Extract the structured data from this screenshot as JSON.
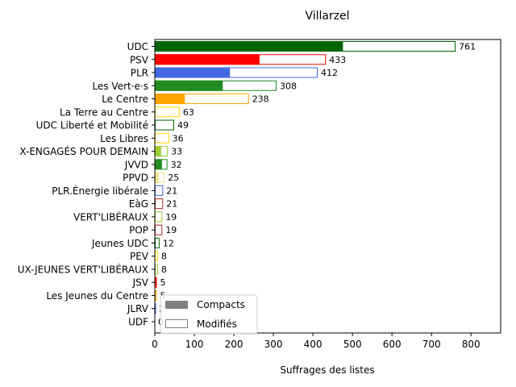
{
  "chart_data": {
    "type": "bar",
    "orientation": "horizontal",
    "title": "Villarzel",
    "xlabel": "Suffrages des listes",
    "ylabel": "",
    "xlim": [
      0,
      875
    ],
    "xticks": [
      0,
      100,
      200,
      300,
      400,
      500,
      600,
      700,
      800
    ],
    "grid": false,
    "legend_position": "lower-left",
    "legend": [
      {
        "name": "Compacts",
        "style": "filled",
        "color": "#808080"
      },
      {
        "name": "Modifiés",
        "style": "outline",
        "color": "#808080"
      }
    ],
    "categories": [
      "UDC",
      "PSV",
      "PLR",
      "Les Vert·e·s",
      "Le Centre",
      "La Terre au Centre",
      "UDC Liberté et Mobilité",
      "Les Libres",
      "X-ENGAGÉS POUR DEMAIN",
      "JVVD",
      "PPVD",
      "PLR.Énergie libérale",
      "EàG",
      "VERT'LIBÉRAUX",
      "POP",
      "Jeunes UDC",
      "PEV",
      "UX-JEUNES VERT'LIBÉRAUX",
      "JSV",
      "Les Jeunes du Centre",
      "JLRV",
      "UDF"
    ],
    "totals": [
      761,
      433,
      412,
      308,
      238,
      63,
      49,
      36,
      33,
      32,
      25,
      21,
      21,
      19,
      19,
      12,
      8,
      8,
      5,
      5,
      2,
      0
    ],
    "compacts": [
      476,
      265,
      190,
      172,
      76,
      0,
      0,
      0,
      16,
      18,
      10,
      0,
      0,
      0,
      0,
      0,
      0,
      0,
      5,
      0,
      2,
      0
    ],
    "value_labels": [
      "761",
      "433",
      "412",
      "308",
      "238",
      "63",
      "49",
      "36",
      "33",
      "32",
      "25",
      "21",
      "21",
      "19",
      "19",
      "12",
      "8",
      "8",
      "5",
      "5",
      "2",
      "0"
    ],
    "colors": [
      "#006400",
      "#ff0000",
      "#4169e1",
      "#228b22",
      "#ffa500",
      "#ffd700",
      "#006400",
      "#ffd700",
      "#9acd32",
      "#228b22",
      "#f0e68c",
      "#4169e1",
      "#b22222",
      "#9acd32",
      "#b22222",
      "#006400",
      "#ffd700",
      "#9acd32",
      "#ff0000",
      "#ffa500",
      "#4169e1",
      "#006400"
    ]
  }
}
